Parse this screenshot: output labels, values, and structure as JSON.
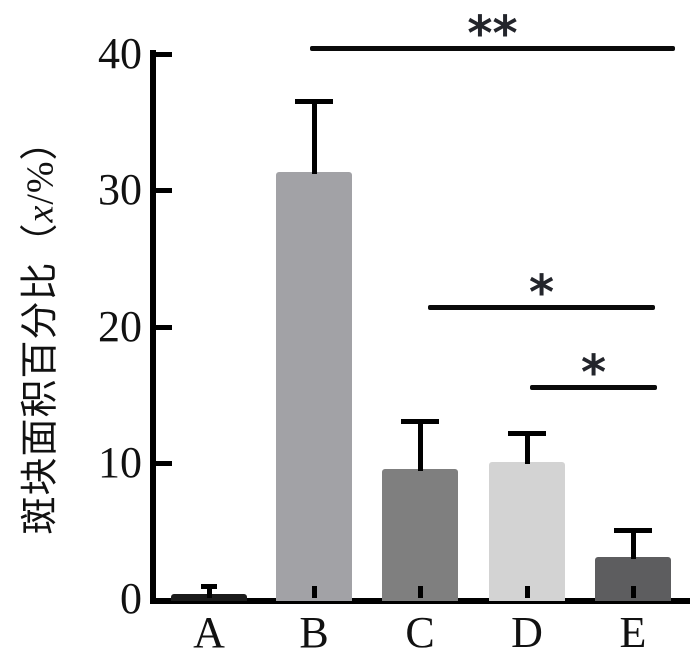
{
  "figure": {
    "background": "#ffffff",
    "axis_color": "#000000",
    "text_color": "#111111"
  },
  "y_axis_label": {
    "prefix": "斑块面积百分比（",
    "variable": "x",
    "suffix": "/%）"
  },
  "chart_data": {
    "type": "bar",
    "title": "",
    "xlabel": "",
    "ylabel": "斑块面积百分比（x/%）",
    "categories": [
      "A",
      "B",
      "C",
      "D",
      "E"
    ],
    "values": [
      0.3,
      31.3,
      9.5,
      10,
      3
    ],
    "errors_plus": [
      0.6,
      5.2,
      3.5,
      2.1,
      2
    ],
    "bar_colors": [
      "#1b1b1b",
      "#a2a2a6",
      "#7f7f7f",
      "#d3d3d3",
      "#5d5d5f"
    ],
    "ylim": [
      0,
      40
    ],
    "yticks": [
      0,
      10,
      20,
      30,
      40
    ],
    "grid": false,
    "legend": null,
    "error_bars": "upper whiskers with caps only",
    "significance": [
      {
        "from": "B",
        "to": "E",
        "label": "**"
      },
      {
        "from": "C",
        "to": "E",
        "label": "*"
      },
      {
        "from": "D",
        "to": "E",
        "label": "*"
      }
    ]
  }
}
